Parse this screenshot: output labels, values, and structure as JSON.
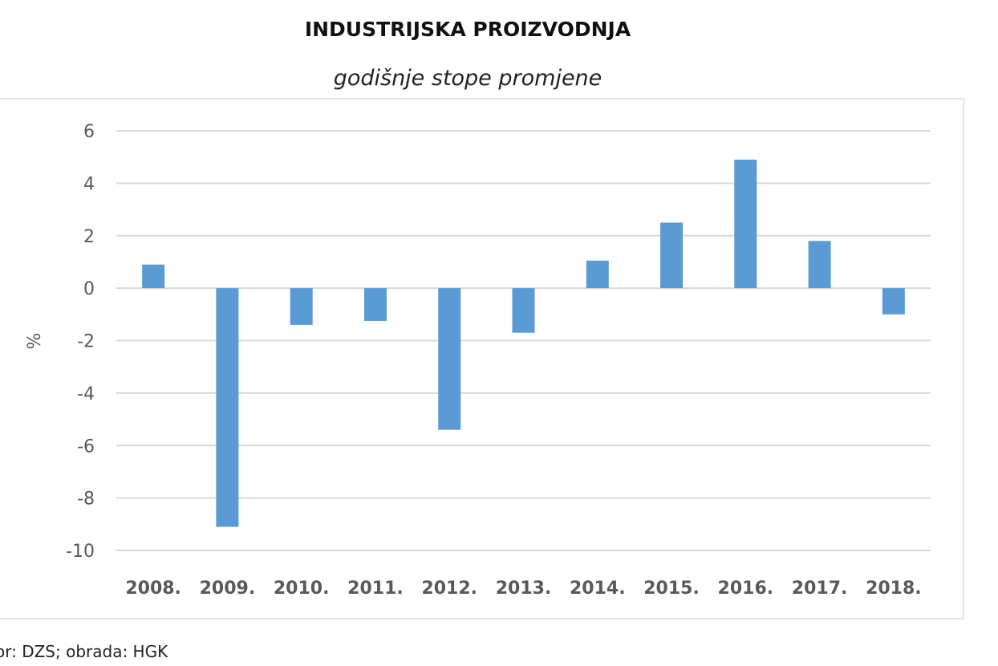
{
  "chart_data": {
    "type": "bar",
    "title": "INDUSTRIJSKA PROIZVODNJA",
    "subtitle": "godišnje stope promjene",
    "ylabel": "%",
    "xlabel": "",
    "categories": [
      "2008.",
      "2009.",
      "2010.",
      "2011.",
      "2012.",
      "2013.",
      "2014.",
      "2015.",
      "2016.",
      "2017.",
      "2018."
    ],
    "values": [
      0.9,
      -9.1,
      -1.4,
      -1.25,
      -5.4,
      -1.7,
      1.05,
      2.5,
      4.9,
      1.8,
      -1.0
    ],
    "ylim": [
      -10,
      6
    ],
    "yticks": [
      6,
      4,
      2,
      0,
      -2,
      -4,
      -6,
      -8,
      -10
    ],
    "grid": true,
    "legend": "none",
    "bar_color": "#5b9bd5",
    "source": "or: DZS; obrada: HGK"
  }
}
